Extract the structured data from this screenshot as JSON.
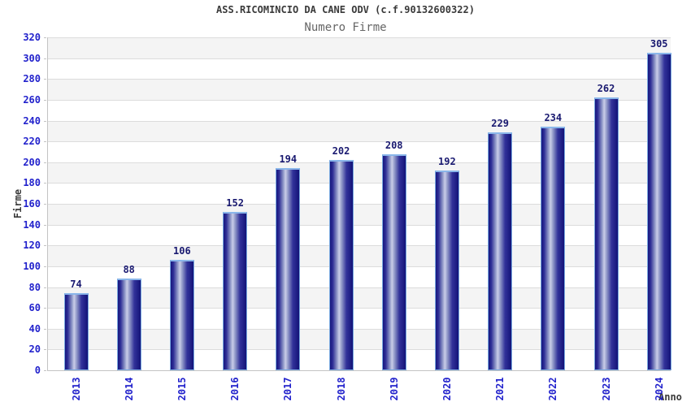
{
  "chart_data": {
    "type": "bar",
    "title": "ASS.RICOMINCIO DA CANE ODV (c.f.90132600322)",
    "subtitle": "Numero Firme",
    "xlabel": "Anno",
    "ylabel": "Firme",
    "categories": [
      "2013",
      "2014",
      "2015",
      "2016",
      "2017",
      "2018",
      "2019",
      "2020",
      "2021",
      "2022",
      "2023",
      "2024"
    ],
    "values": [
      74,
      88,
      106,
      152,
      194,
      202,
      208,
      192,
      229,
      234,
      262,
      305
    ],
    "ylim": [
      0,
      320
    ],
    "ytick_step": 20,
    "grid": true,
    "legend": "none",
    "band_fill": "alternating",
    "colors": {
      "tick_label": "#2222cc",
      "value_label": "#191970",
      "title": "#3a3a3a",
      "subtitle": "#666666",
      "bar_dark": "#17177e",
      "bar_highlight": "#c9cde8",
      "bar_border": "#79a9e0",
      "band_gray": "#f4f4f4",
      "gridline": "#dcdcdc",
      "axis_line": "#c3c3c3"
    }
  }
}
